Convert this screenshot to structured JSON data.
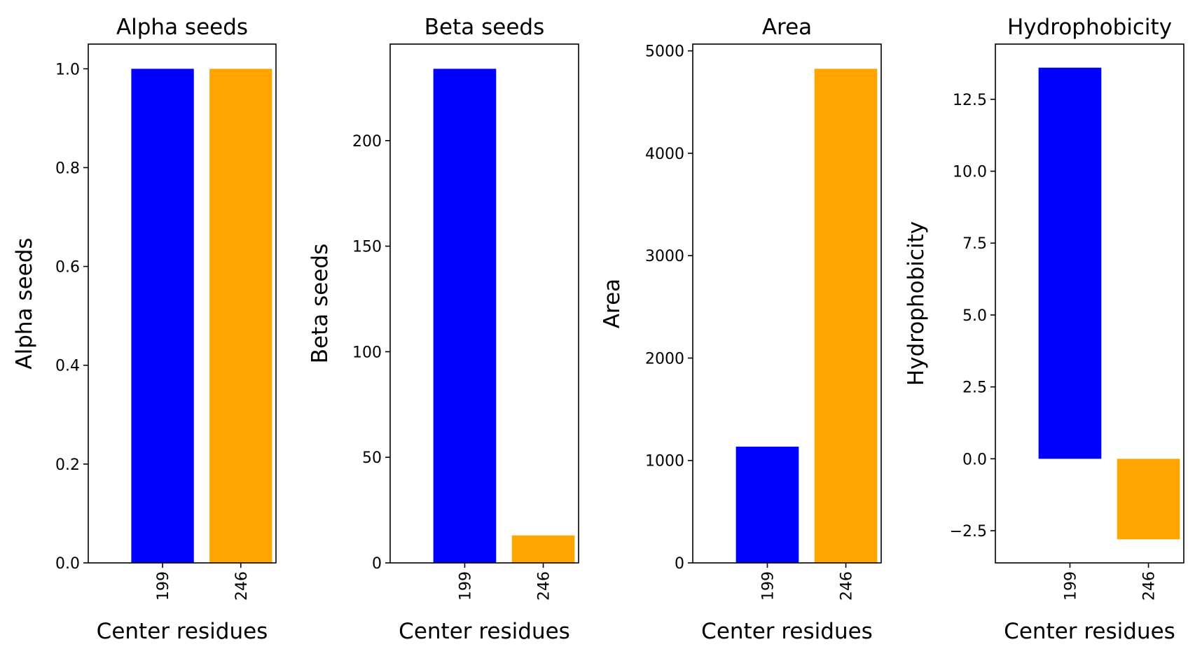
{
  "chart_data": [
    {
      "type": "bar",
      "title": "Alpha seeds",
      "xlabel": "Center residues",
      "ylabel": "Alpha seeds",
      "categories": [
        "199",
        "246"
      ],
      "values": [
        1.0,
        1.0
      ],
      "colors": [
        "#0000ff",
        "#ffa500"
      ],
      "ylim": [
        0,
        1.05
      ],
      "yticks": [
        0.0,
        0.2,
        0.4,
        0.6,
        0.8,
        1.0
      ],
      "ytick_labels": [
        "0.0",
        "0.2",
        "0.4",
        "0.6",
        "0.8",
        "1.0"
      ],
      "xtick_rotation": 90,
      "grid": false
    },
    {
      "type": "bar",
      "title": "Beta seeds",
      "xlabel": "Center residues",
      "ylabel": "Beta seeds",
      "categories": [
        "199",
        "246"
      ],
      "values": [
        234,
        13
      ],
      "colors": [
        "#0000ff",
        "#ffa500"
      ],
      "ylim": [
        0,
        245.7
      ],
      "yticks": [
        0,
        50,
        100,
        150,
        200
      ],
      "ytick_labels": [
        "0",
        "50",
        "100",
        "150",
        "200"
      ],
      "xtick_rotation": 90,
      "grid": false
    },
    {
      "type": "bar",
      "title": "Area",
      "xlabel": "Center residues",
      "ylabel": "Area",
      "categories": [
        "199",
        "246"
      ],
      "values": [
        1135,
        4825
      ],
      "colors": [
        "#0000ff",
        "#ffa500"
      ],
      "ylim": [
        0,
        5066
      ],
      "yticks": [
        0,
        1000,
        2000,
        3000,
        4000,
        5000
      ],
      "ytick_labels": [
        "0",
        "1000",
        "2000",
        "3000",
        "4000",
        "5000"
      ],
      "xtick_rotation": 90,
      "grid": false
    },
    {
      "type": "bar",
      "title": "Hydrophobicity",
      "xlabel": "Center residues",
      "ylabel": "Hydrophobicity",
      "categories": [
        "199",
        "246"
      ],
      "values": [
        13.6,
        -2.8
      ],
      "colors": [
        "#0000ff",
        "#ffa500"
      ],
      "ylim": [
        -3.62,
        14.42
      ],
      "yticks": [
        -2.5,
        0.0,
        2.5,
        5.0,
        7.5,
        10.0,
        12.5
      ],
      "ytick_labels": [
        "−2.5",
        "0.0",
        "2.5",
        "5.0",
        "7.5",
        "10.0",
        "12.5"
      ],
      "xtick_rotation": 90,
      "grid": false
    }
  ]
}
